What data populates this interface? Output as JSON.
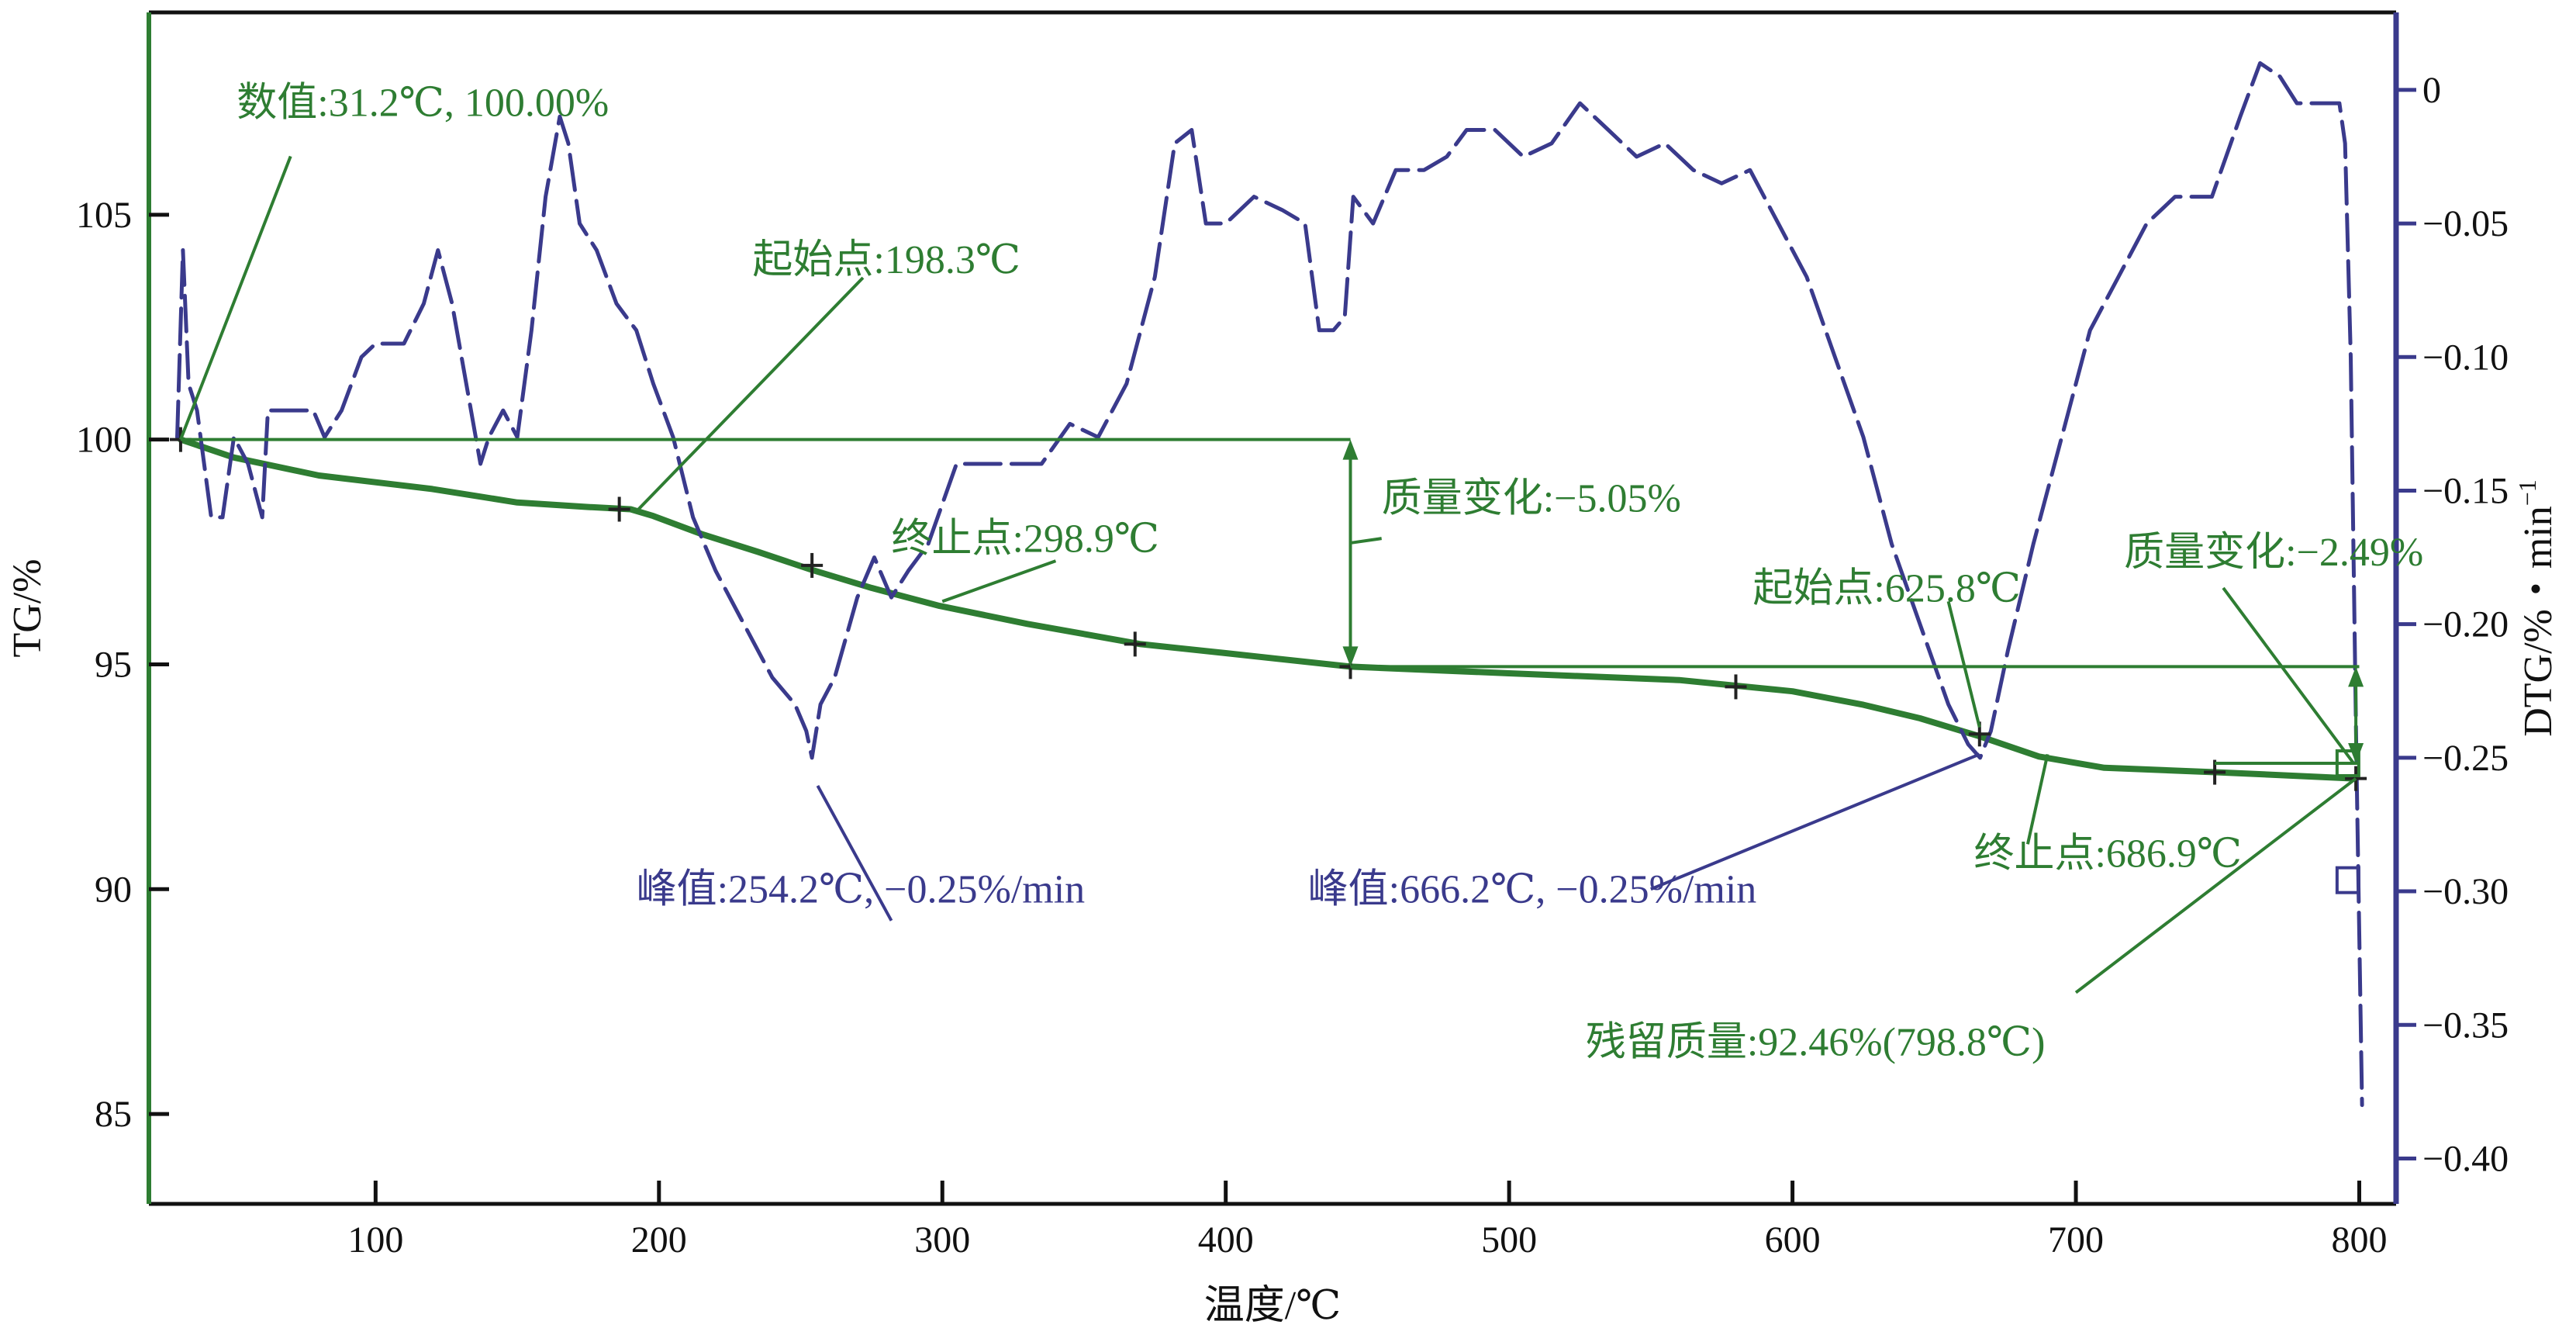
{
  "chart_data": {
    "type": "line",
    "xlabel": "温度/℃",
    "ylabel_left": "TG/%",
    "ylabel_right": "DTG/%・min",
    "ylabel_right_sup": "−1",
    "xlim": [
      20,
      813
    ],
    "ylim_left": [
      83,
      109.5
    ],
    "ylim_right": [
      -0.417,
      0.029
    ],
    "x_ticks": [
      100,
      200,
      300,
      400,
      500,
      600,
      700,
      800
    ],
    "y_left_ticks": [
      85,
      90,
      95,
      100,
      105
    ],
    "y_right_ticks": [
      {
        "value": 0,
        "label": "0"
      },
      {
        "value": -0.05,
        "label": "−0.05"
      },
      {
        "value": -0.1,
        "label": "−0.10"
      },
      {
        "value": -0.15,
        "label": "−0.15"
      },
      {
        "value": -0.2,
        "label": "−0.20"
      },
      {
        "value": -0.25,
        "label": "−0.25"
      },
      {
        "value": -0.3,
        "label": "−0.30"
      },
      {
        "value": -0.35,
        "label": "−0.35"
      },
      {
        "value": -0.4,
        "label": "−0.40"
      }
    ],
    "colors": {
      "tg": "#2e7d32",
      "dtg": "#3a3a8c",
      "frame": "#111111",
      "tg_axis": "#2e7d32",
      "dtg_axis": "#3a3a8c"
    },
    "series": [
      {
        "name": "TG",
        "axis": "left",
        "style": "solid",
        "points": [
          [
            31.2,
            100
          ],
          [
            50,
            99.6
          ],
          [
            80,
            99.2
          ],
          [
            120,
            98.9
          ],
          [
            150,
            98.6
          ],
          [
            175,
            98.5
          ],
          [
            190,
            98.45
          ],
          [
            198,
            98.3
          ],
          [
            215,
            97.9
          ],
          [
            235,
            97.5
          ],
          [
            254,
            97.1
          ],
          [
            275,
            96.7
          ],
          [
            299,
            96.3
          ],
          [
            330,
            95.9
          ],
          [
            370,
            95.45
          ],
          [
            400,
            95.25
          ],
          [
            444,
            94.95
          ],
          [
            500,
            94.8
          ],
          [
            560,
            94.65
          ],
          [
            600,
            94.4
          ],
          [
            625,
            94.1
          ],
          [
            645,
            93.8
          ],
          [
            666,
            93.4
          ],
          [
            687,
            92.95
          ],
          [
            710,
            92.7
          ],
          [
            750,
            92.6
          ],
          [
            798.8,
            92.46
          ]
        ]
      },
      {
        "name": "DTG",
        "axis": "right",
        "style": "dashed",
        "points": [
          [
            30,
            -0.13
          ],
          [
            32,
            -0.06
          ],
          [
            34,
            -0.11
          ],
          [
            37,
            -0.12
          ],
          [
            42,
            -0.16
          ],
          [
            46,
            -0.16
          ],
          [
            50,
            -0.13
          ],
          [
            55,
            -0.14
          ],
          [
            60,
            -0.16
          ],
          [
            62,
            -0.12
          ],
          [
            70,
            -0.12
          ],
          [
            78,
            -0.12
          ],
          [
            82,
            -0.13
          ],
          [
            88,
            -0.12
          ],
          [
            95,
            -0.1
          ],
          [
            100,
            -0.095
          ],
          [
            110,
            -0.095
          ],
          [
            117,
            -0.08
          ],
          [
            122,
            -0.06
          ],
          [
            127,
            -0.08
          ],
          [
            132,
            -0.11
          ],
          [
            137,
            -0.14
          ],
          [
            140,
            -0.13
          ],
          [
            145,
            -0.12
          ],
          [
            150,
            -0.13
          ],
          [
            155,
            -0.09
          ],
          [
            160,
            -0.04
          ],
          [
            165,
            -0.01
          ],
          [
            168,
            -0.02
          ],
          [
            172,
            -0.05
          ],
          [
            178,
            -0.06
          ],
          [
            185,
            -0.08
          ],
          [
            192,
            -0.09
          ],
          [
            198,
            -0.11
          ],
          [
            205,
            -0.13
          ],
          [
            212,
            -0.16
          ],
          [
            220,
            -0.18
          ],
          [
            230,
            -0.2
          ],
          [
            240,
            -0.22
          ],
          [
            248,
            -0.23
          ],
          [
            252,
            -0.24
          ],
          [
            254,
            -0.25
          ],
          [
            257,
            -0.23
          ],
          [
            262,
            -0.22
          ],
          [
            270,
            -0.19
          ],
          [
            276,
            -0.175
          ],
          [
            282,
            -0.19
          ],
          [
            288,
            -0.18
          ],
          [
            295,
            -0.17
          ],
          [
            305,
            -0.14
          ],
          [
            315,
            -0.14
          ],
          [
            325,
            -0.14
          ],
          [
            335,
            -0.14
          ],
          [
            345,
            -0.125
          ],
          [
            355,
            -0.13
          ],
          [
            365,
            -0.11
          ],
          [
            375,
            -0.07
          ],
          [
            382,
            -0.02
          ],
          [
            388,
            -0.015
          ],
          [
            393,
            -0.05
          ],
          [
            400,
            -0.05
          ],
          [
            410,
            -0.04
          ],
          [
            420,
            -0.045
          ],
          [
            428,
            -0.05
          ],
          [
            433,
            -0.09
          ],
          [
            438,
            -0.09
          ],
          [
            442,
            -0.085
          ],
          [
            445,
            -0.04
          ],
          [
            452,
            -0.05
          ],
          [
            460,
            -0.03
          ],
          [
            470,
            -0.03
          ],
          [
            478,
            -0.025
          ],
          [
            485,
            -0.015
          ],
          [
            495,
            -0.015
          ],
          [
            505,
            -0.025
          ],
          [
            515,
            -0.02
          ],
          [
            525,
            -0.005
          ],
          [
            535,
            -0.015
          ],
          [
            545,
            -0.025
          ],
          [
            555,
            -0.02
          ],
          [
            565,
            -0.03
          ],
          [
            575,
            -0.035
          ],
          [
            585,
            -0.03
          ],
          [
            595,
            -0.05
          ],
          [
            605,
            -0.07
          ],
          [
            615,
            -0.1
          ],
          [
            625,
            -0.13
          ],
          [
            635,
            -0.17
          ],
          [
            645,
            -0.2
          ],
          [
            655,
            -0.23
          ],
          [
            662,
            -0.245
          ],
          [
            666.2,
            -0.25
          ],
          [
            670,
            -0.24
          ],
          [
            676,
            -0.21
          ],
          [
            685,
            -0.17
          ],
          [
            695,
            -0.13
          ],
          [
            705,
            -0.09
          ],
          [
            715,
            -0.07
          ],
          [
            725,
            -0.05
          ],
          [
            735,
            -0.04
          ],
          [
            748,
            -0.04
          ],
          [
            758,
            -0.01
          ],
          [
            765,
            0.01
          ],
          [
            772,
            0.005
          ],
          [
            778,
            -0.005
          ],
          [
            786,
            -0.005
          ],
          [
            793,
            -0.005
          ],
          [
            795,
            -0.02
          ],
          [
            797,
            -0.1
          ],
          [
            799,
            -0.25
          ],
          [
            801,
            -0.38
          ]
        ]
      }
    ],
    "tg_markers": [
      [
        31.2,
        100
      ],
      [
        186,
        98.45
      ],
      [
        254,
        97.2
      ],
      [
        368,
        95.45
      ],
      [
        444,
        94.95
      ],
      [
        580,
        94.5
      ],
      [
        666,
        93.45
      ],
      [
        749,
        92.6
      ],
      [
        798.8,
        92.46
      ]
    ],
    "annotations": [
      {
        "text": "数值:31.2℃, 100.00%",
        "color": "tg",
        "anchor": "start",
        "lx": 51,
        "ly": 107.2
      },
      {
        "text": "起始点:198.3℃",
        "color": "tg",
        "anchor": "start",
        "lx": 233,
        "ly": 103.7
      },
      {
        "text": "终止点:298.9℃",
        "color": "tg",
        "anchor": "start",
        "lx": 282,
        "ly": 97.5
      },
      {
        "text": "质量变化:−5.05%",
        "color": "tg",
        "anchor": "start",
        "lx": 455,
        "ly": 98.4
      },
      {
        "text": "起始点:625.8℃",
        "color": "tg",
        "anchor": "start",
        "lx": 586,
        "ly": 96.4
      },
      {
        "text": "质量变化:−2.49%",
        "color": "tg",
        "anchor": "start",
        "lx": 717,
        "ly": 97.2
      },
      {
        "text": "峰值:254.2℃, −0.25%/min",
        "color": "dtg",
        "anchor": "start",
        "lx": 192,
        "ly": 89.7
      },
      {
        "text": "峰值:666.2℃, −0.25%/min",
        "color": "dtg",
        "anchor": "start",
        "lx": 429,
        "ly": 89.7
      },
      {
        "text": "终止点:686.9℃",
        "color": "tg",
        "anchor": "start",
        "lx": 664,
        "ly": 90.5
      },
      {
        "text": "残留质量:92.46%(798.8℃)",
        "color": "tg",
        "anchor": "start",
        "lx": 527,
        "ly": 86.3
      }
    ]
  }
}
